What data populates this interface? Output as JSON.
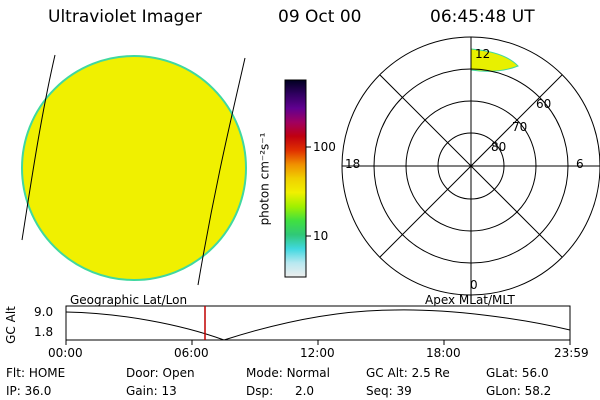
{
  "header": {
    "instrument": "Ultraviolet Imager",
    "date": "09 Oct 00",
    "time": "06:45:48 UT"
  },
  "colorbar": {
    "unit_label": "photon cm⁻²s⁻¹",
    "ticks": [
      "100",
      "10"
    ],
    "stops": [
      "#eeeeee",
      "#b8e8f0",
      "#40d8e0",
      "#30c878",
      "#40e040",
      "#a0f000",
      "#f0f000",
      "#f0d000",
      "#f09000",
      "#e03000",
      "#c00010",
      "#a00060",
      "#600090",
      "#300060",
      "#000020"
    ]
  },
  "polar_plot": {
    "lat_labels": [
      "80",
      "70",
      "60"
    ],
    "mlt_labels": {
      "top": "12",
      "left": "18",
      "right": "6",
      "bottom": "0"
    }
  },
  "altitude_plot": {
    "frame_labels": {
      "left": "Geographic Lat/Lon",
      "right": "Apex MLat/MLT"
    },
    "ylabel": "GC Alt",
    "yticks": [
      "9.0",
      "1.8"
    ],
    "xticks": [
      "00:00",
      "06:00",
      "12:00",
      "18:00",
      "23:59"
    ]
  },
  "status": {
    "row1": [
      {
        "key": "Flt:",
        "value": "HOME"
      },
      {
        "key": "Door:",
        "value": "Open"
      },
      {
        "key": "Mode:",
        "value": "Normal"
      },
      {
        "key": "GC Alt:",
        "value": "2.5 Re"
      },
      {
        "key": "GLat:",
        "value": "56.0"
      }
    ],
    "row2": [
      {
        "key": "IP:",
        "value": "36.0"
      },
      {
        "key": "Gain:",
        "value": "13"
      },
      {
        "key": "Dsp:",
        "value": "2.0"
      },
      {
        "key": "Seq:",
        "value": "39"
      },
      {
        "key": "GLon:",
        "value": "58.2"
      }
    ]
  },
  "colors": {
    "disk_fill": "#f0f000",
    "disk_edge": "#40d8a0",
    "polar_patch": "#e8f000",
    "cursor": "#c00000"
  }
}
